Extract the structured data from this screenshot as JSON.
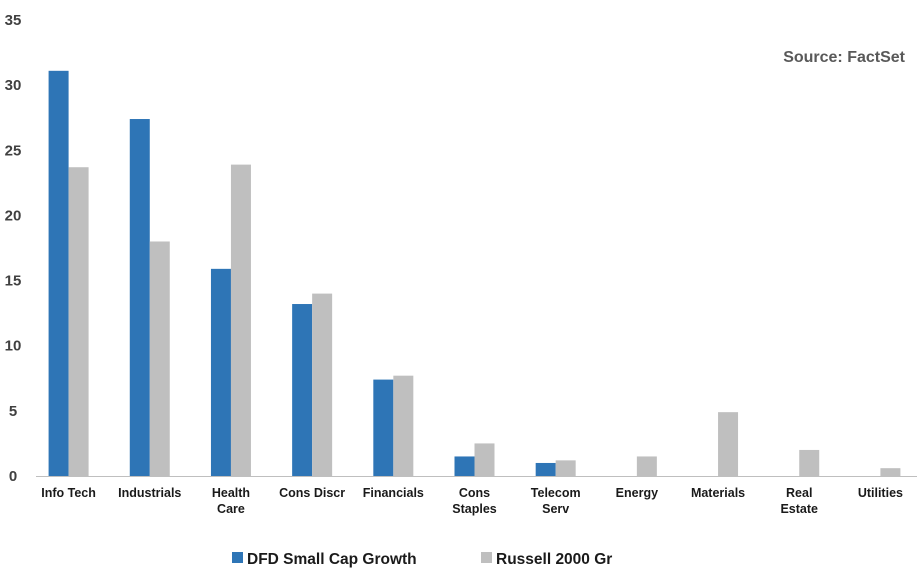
{
  "chart_data": {
    "type": "bar",
    "annotation": "Source: FactSet",
    "categories": [
      [
        "Info Tech"
      ],
      [
        "Industrials"
      ],
      [
        "Health",
        "Care"
      ],
      [
        "Cons Discr"
      ],
      [
        "Financials"
      ],
      [
        "Cons",
        "Staples"
      ],
      [
        "Telecom",
        "Serv"
      ],
      [
        "Energy"
      ],
      [
        "Materials"
      ],
      [
        "Real",
        "Estate"
      ],
      [
        "Utilities"
      ]
    ],
    "series": [
      {
        "name": "DFD Small Cap Growth",
        "color": "#2e75b6",
        "values": [
          31.1,
          27.4,
          15.9,
          13.2,
          7.4,
          1.5,
          1.0,
          0,
          0,
          0,
          0
        ]
      },
      {
        "name": "Russell 2000 Gr",
        "color": "#bfbfbf",
        "values": [
          23.7,
          18.0,
          23.9,
          14.0,
          7.7,
          2.5,
          1.2,
          1.5,
          4.9,
          2.0,
          0.6
        ]
      }
    ],
    "ylim": [
      0,
      35
    ],
    "yticks": [
      0,
      5,
      10,
      15,
      20,
      25,
      30,
      35
    ],
    "legend_position": "bottom",
    "grid": false
  }
}
